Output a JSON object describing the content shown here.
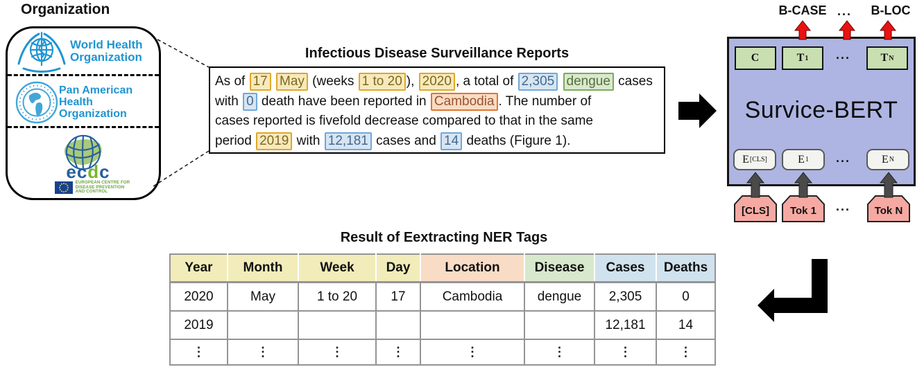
{
  "organization": {
    "title": "Organization",
    "who": {
      "lines": [
        "World Health",
        "Organization"
      ]
    },
    "paho": {
      "lines": [
        "Pan American",
        "Health",
        "Organization"
      ]
    },
    "ecdc": {
      "wm_prefix": "ec",
      "wm_d": "d",
      "wm_suffix": "c",
      "caption_lines": [
        "EUROPEAN CENTRE FOR",
        "DISEASE PREVENTION",
        "AND CONTROL"
      ]
    }
  },
  "report": {
    "title": "Infectious Disease Surveillance Reports",
    "lines": [
      [
        {
          "t": " As of "
        },
        {
          "t": "17",
          "h": "time"
        },
        {
          "t": " "
        },
        {
          "t": "May",
          "h": "time"
        },
        {
          "t": " (weeks "
        },
        {
          "t": "1 to 20",
          "h": "time"
        },
        {
          "t": "), "
        },
        {
          "t": "2020",
          "h": "time"
        },
        {
          "t": ", a total of "
        },
        {
          "t": "2,305",
          "h": "case"
        },
        {
          "t": " "
        },
        {
          "t": "dengue",
          "h": "disease"
        },
        {
          "t": " cases"
        }
      ],
      [
        {
          "t": "with "
        },
        {
          "t": "0",
          "h": "case"
        },
        {
          "t": " death have been reported in "
        },
        {
          "t": "Cambodia",
          "h": "loc"
        },
        {
          "t": ". The number of"
        }
      ],
      [
        {
          "t": "cases reported is fivefold decrease compared to that in the same"
        }
      ],
      [
        {
          "t": "period "
        },
        {
          "t": "2019",
          "h": "time"
        },
        {
          "t": " with "
        },
        {
          "t": "12,181",
          "h": "case"
        },
        {
          "t": " cases and "
        },
        {
          "t": "14",
          "h": "case"
        },
        {
          "t": " deaths (Figure 1)."
        }
      ]
    ]
  },
  "bert": {
    "title": "Survice-BERT",
    "ellipsis": "...",
    "outputs": {
      "b_case": "B-CASE",
      "b_loc": "B-LOC"
    },
    "top_units": {
      "c": {
        "base": "C",
        "sub": ""
      },
      "t1": {
        "base": "T",
        "sub": "1"
      },
      "tn": {
        "base": "T",
        "sub": "N"
      }
    },
    "emb_units": {
      "ecls": {
        "base": "E",
        "sub": "[CLS]"
      },
      "e1": {
        "base": "E",
        "sub": "1"
      },
      "en": {
        "base": "E",
        "sub": "N"
      }
    },
    "tokens": [
      "[CLS]",
      "Tok 1",
      "Tok N"
    ]
  },
  "ner_table": {
    "title": "Result of Eextracting NER Tags",
    "columns": [
      {
        "label": "Year",
        "group": "time"
      },
      {
        "label": "Month",
        "group": "time"
      },
      {
        "label": "Week",
        "group": "time"
      },
      {
        "label": "Day",
        "group": "time"
      },
      {
        "label": "Location",
        "group": "loc"
      },
      {
        "label": "Disease",
        "group": "dis"
      },
      {
        "label": "Cases",
        "group": "case"
      },
      {
        "label": "Deaths",
        "group": "case"
      }
    ],
    "rows": [
      [
        "2020",
        "May",
        "1 to 20",
        "17",
        "Cambodia",
        "dengue",
        "2,305",
        "0"
      ],
      [
        "2019",
        "",
        "",
        "",
        "",
        "",
        "12,181",
        "14"
      ],
      [
        "⋮",
        "⋮",
        "⋮",
        "⋮",
        "⋮",
        "⋮",
        "⋮",
        "⋮"
      ]
    ]
  },
  "colors": {
    "who_blue": "#2095d3",
    "ecdc_blue": "#24609c",
    "ecdc_green": "#76b82a",
    "bert_box_fill": "#aeb5e2",
    "unit_box_green": "#c9dfb1",
    "token_box_pink": "#f6a9a2",
    "output_arrow_red": "#e81212",
    "input_arrow_gray": "#4a4a4a",
    "tag_time_fill": "#f7e9bc",
    "tag_time_border": "#dfa827",
    "tag_case_fill": "#d7e5f2",
    "tag_case_border": "#6fa8dc",
    "tag_disease_fill": "#d9e8ce",
    "tag_disease_border": "#7cab5a",
    "tag_location_fill": "#f9dcc5",
    "tag_location_border": "#e0762f",
    "header_time": "#f2ecba",
    "header_location": "#f9dcc6",
    "header_disease": "#d8e8cc",
    "header_case": "#cfe2ee"
  }
}
